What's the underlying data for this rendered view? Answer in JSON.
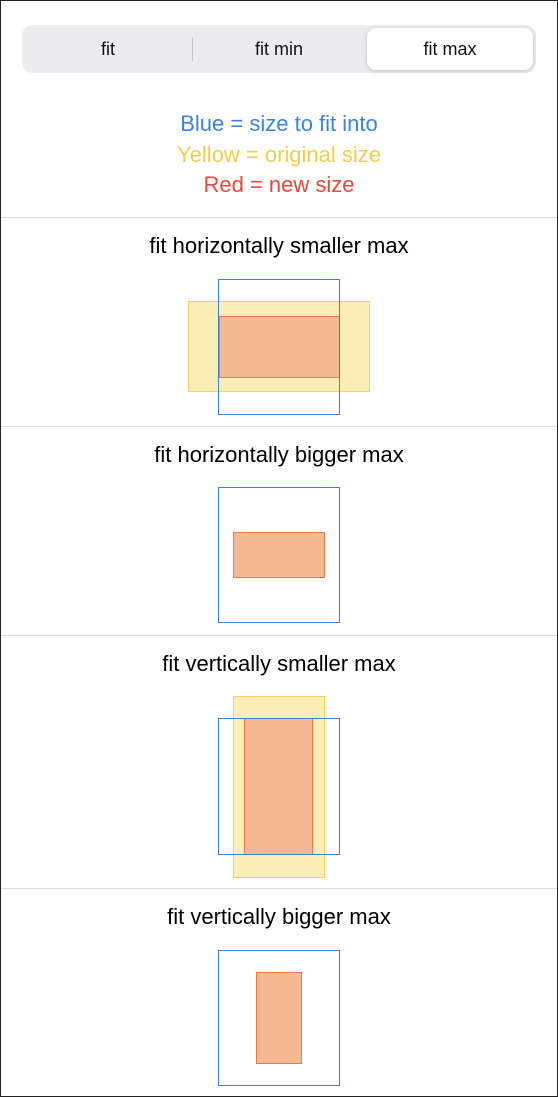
{
  "segmented_control": {
    "options": [
      "fit",
      "fit min",
      "fit max"
    ],
    "selected": "fit max"
  },
  "legend": {
    "blue": "Blue = size to fit into",
    "yellow": "Yellow = original size",
    "red": "Red = new size"
  },
  "colors": {
    "blue": "#3a7fe0",
    "yellow": "#f6cb50",
    "red": "#ea7b44",
    "red_fill": "#f4b993"
  },
  "sections": [
    {
      "title": "fit horizontally smaller max"
    },
    {
      "title": "fit horizontally bigger max"
    },
    {
      "title": "fit vertically smaller max"
    },
    {
      "title": "fit vertically bigger max"
    }
  ]
}
